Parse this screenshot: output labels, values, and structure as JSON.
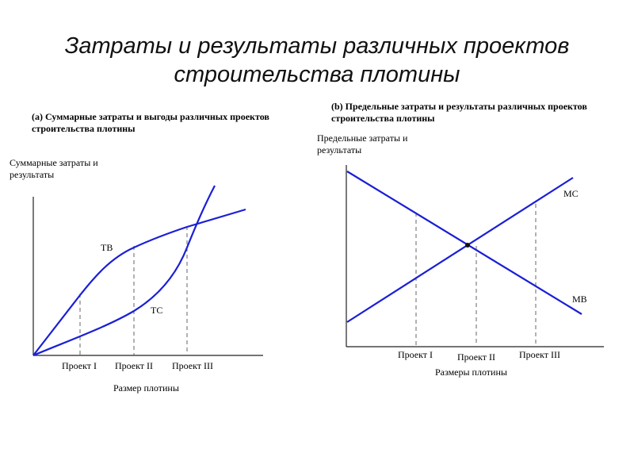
{
  "title_lines": [
    "Затраты и результаты различных проектов",
    "строительства плотины"
  ],
  "colors": {
    "curve": "#1a1fd6",
    "axis": "#222222",
    "guide": "#666666"
  },
  "panel_a": {
    "title": "(а) Суммарные затраты и выгоды различных проектов строительства плотины",
    "ylabel": "Суммарные затраты и результаты",
    "xlabel": "Размер плотины",
    "labels": {
      "tb": "TB",
      "tc": "TC"
    },
    "ticks": [
      "Проект I",
      "Проект II",
      "Проект III"
    ]
  },
  "panel_b": {
    "title": "(b) Предельные затраты и результаты различных проектов строительства плотины",
    "ylabel": "Предельные затраты и результаты",
    "xlabel": "Размеры плотины",
    "labels": {
      "mc": "MC",
      "mb": "MB"
    },
    "ticks": [
      "Проект I",
      "Проект II",
      "Проект III"
    ]
  }
}
